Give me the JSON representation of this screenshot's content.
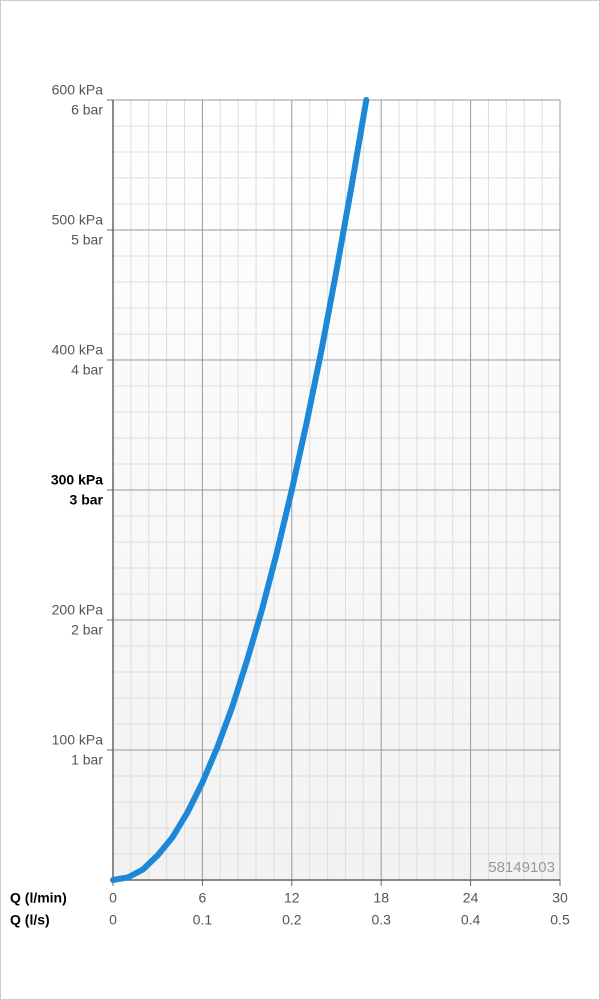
{
  "chart_data": {
    "type": "line",
    "xlabel": "Q (l/min)",
    "x2label": "Q (l/s)",
    "x": [
      0,
      1,
      2,
      3,
      4,
      5,
      6,
      7,
      8,
      9,
      10,
      11,
      12,
      13,
      14,
      15,
      16,
      17
    ],
    "series": [
      {
        "color": "#1e88d8",
        "values": [
          0,
          2,
          8,
          19,
          33,
          52,
          75,
          102,
          133,
          169,
          208,
          252,
          300,
          352,
          408,
          469,
          533,
          600
        ]
      }
    ],
    "xlim": [
      0,
      30
    ],
    "xticks": [
      0,
      6,
      12,
      18,
      24,
      30
    ],
    "x2lim": [
      0,
      0.5
    ],
    "x2ticks": [
      0,
      0.1,
      0.2,
      0.3,
      0.4,
      0.5
    ],
    "ylim": [
      0,
      600
    ],
    "yticks": [
      {
        "value": 100,
        "label": "100 kPa"
      },
      {
        "value": 200,
        "label": "200 kPa"
      },
      {
        "value": 300,
        "label": "300 kPa"
      },
      {
        "value": 400,
        "label": "400 kPa"
      },
      {
        "value": 500,
        "label": "500 kPa"
      },
      {
        "value": 600,
        "label": "600 kPa"
      }
    ],
    "y2lim": [
      0,
      6
    ],
    "y2ticks": [
      {
        "value": 1,
        "label": "1 bar"
      },
      {
        "value": 2,
        "label": "2 bar"
      },
      {
        "value": 3,
        "label": "3 bar"
      },
      {
        "value": 4,
        "label": "4 bar"
      },
      {
        "value": 5,
        "label": "5 bar"
      },
      {
        "value": 6,
        "label": "6 bar"
      }
    ],
    "emphasized_ytick": 300,
    "grid": true,
    "minor_grid_divisions": 5,
    "code": "58149103"
  }
}
